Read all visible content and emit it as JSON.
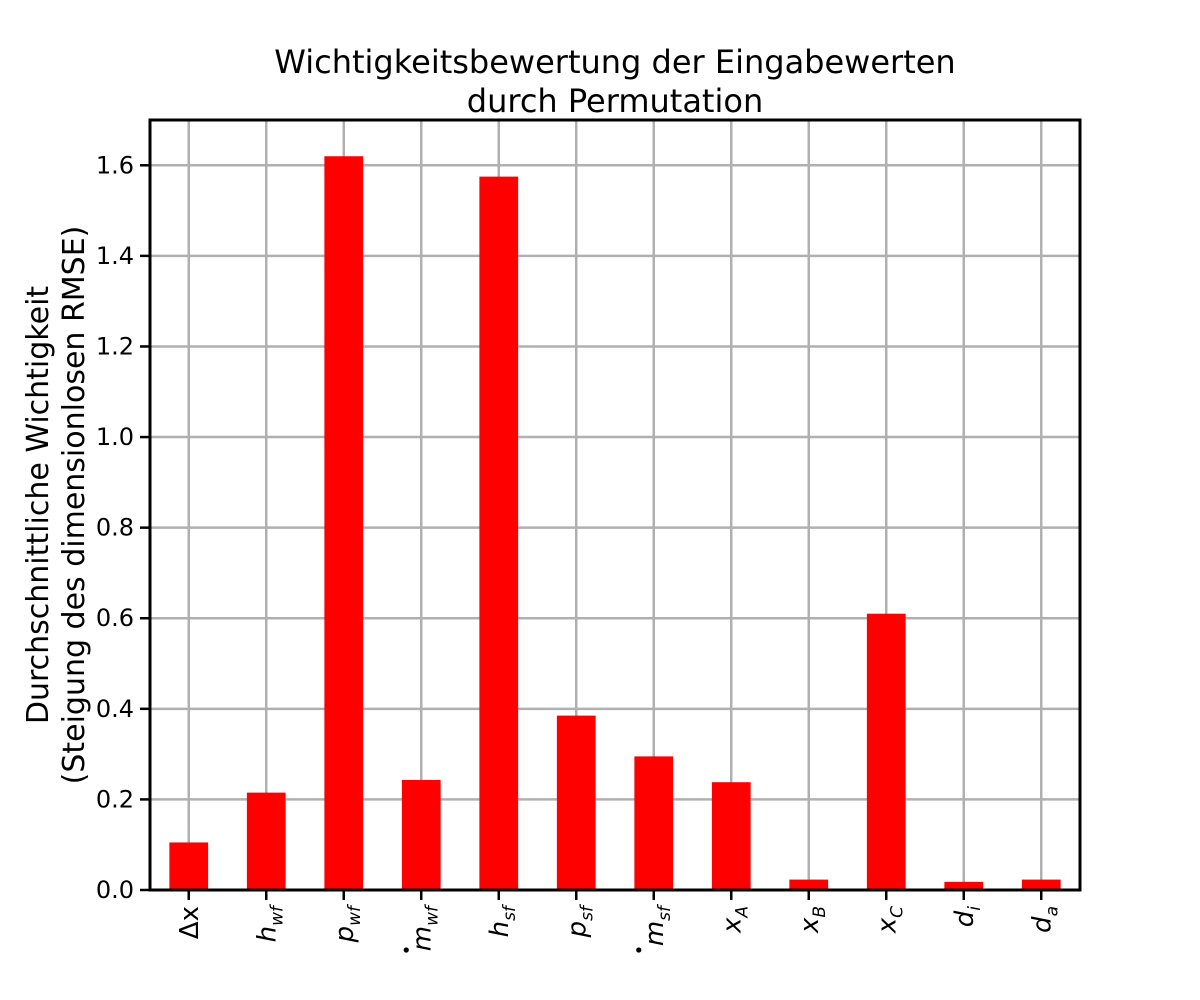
{
  "chart_data": {
    "type": "bar",
    "title_lines": [
      "Wichtigkeitsbewertung der Eingabewerten",
      "durch Permutation"
    ],
    "ylabel_lines": [
      "Durchschnittliche Wichtigkeit",
      "(Steigung des dimensionlosen RMSE)"
    ],
    "xlabel": "",
    "ylim": [
      0,
      1.7
    ],
    "yticks": [
      "0.0",
      "0.2",
      "0.4",
      "0.6",
      "0.8",
      "1.0",
      "1.2",
      "1.4",
      "1.6"
    ],
    "grid": true,
    "bar_color": "#ff0000",
    "categories": [
      {
        "base": "Δx",
        "sub": "",
        "dot": false
      },
      {
        "base": "h",
        "sub": "wf",
        "dot": false
      },
      {
        "base": "p",
        "sub": "wf",
        "dot": false
      },
      {
        "base": "m",
        "sub": "wf",
        "dot": true
      },
      {
        "base": "h",
        "sub": "sf",
        "dot": false
      },
      {
        "base": "p",
        "sub": "sf",
        "dot": false
      },
      {
        "base": "m",
        "sub": "sf",
        "dot": true
      },
      {
        "base": "x",
        "sub": "A",
        "dot": false
      },
      {
        "base": "x",
        "sub": "B",
        "dot": false
      },
      {
        "base": "x",
        "sub": "C",
        "dot": false
      },
      {
        "base": "d",
        "sub": "i",
        "dot": false
      },
      {
        "base": "d",
        "sub": "a",
        "dot": false
      }
    ],
    "values": [
      0.105,
      0.215,
      1.62,
      0.243,
      1.575,
      0.385,
      0.295,
      0.238,
      0.023,
      0.61,
      0.018,
      0.023
    ]
  }
}
